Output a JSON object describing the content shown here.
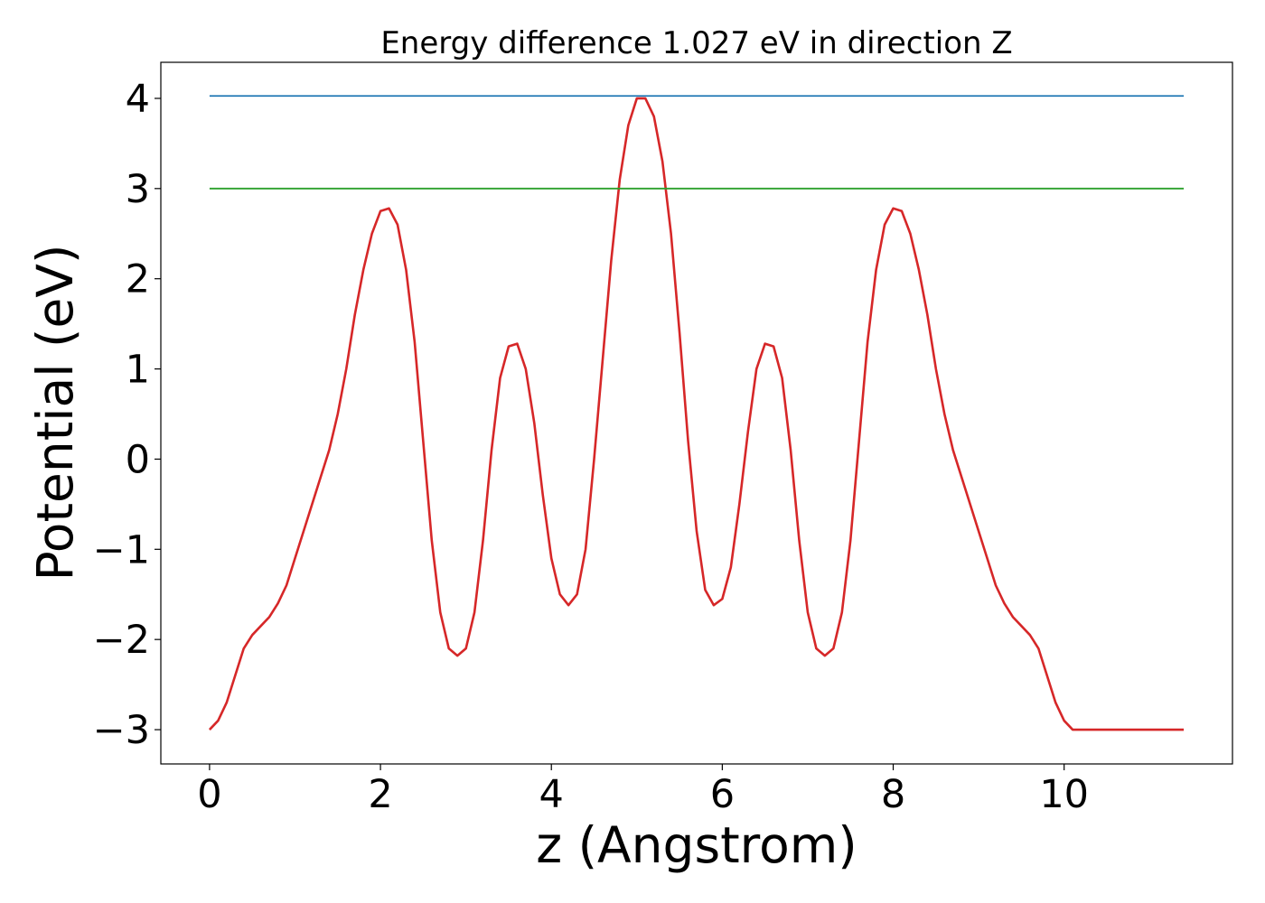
{
  "chart_data": {
    "type": "line",
    "title": "Energy difference 1.027 eV in direction Z",
    "xlabel": "z (Angstrom)",
    "ylabel": "Potential (eV)",
    "xlim": [
      -0.57,
      11.97
    ],
    "ylim": [
      -3.38,
      4.4
    ],
    "xticks": [
      0,
      2,
      4,
      6,
      8,
      10
    ],
    "xtick_labels": [
      "0",
      "2",
      "4",
      "6",
      "8",
      "10"
    ],
    "yticks": [
      -3,
      -2,
      -1,
      0,
      1,
      2,
      3,
      4
    ],
    "ytick_labels": [
      "−3",
      "−2",
      "−1",
      "0",
      "1",
      "2",
      "3",
      "4"
    ],
    "grid": false,
    "series": [
      {
        "color": "#d62728",
        "x": [
          0,
          0.1,
          0.2,
          0.3,
          0.4,
          0.5,
          0.6,
          0.7,
          0.8,
          0.9,
          1.0,
          1.1,
          1.2,
          1.3,
          1.4,
          1.5,
          1.6,
          1.7,
          1.8,
          1.9,
          2.0,
          2.1,
          2.2,
          2.3,
          2.4,
          2.5,
          2.6,
          2.7,
          2.8,
          2.9,
          3.0,
          3.1,
          3.2,
          3.3,
          3.4,
          3.5,
          3.6,
          3.7,
          3.8,
          3.9,
          4.0,
          4.1,
          4.2,
          4.3,
          4.4,
          4.5,
          4.6,
          4.7,
          4.8,
          4.9,
          5.0,
          5.1,
          5.2,
          5.3,
          5.4,
          5.5,
          5.6,
          5.7,
          5.8,
          5.9,
          6.0,
          6.1,
          6.2,
          6.3,
          6.4,
          6.5,
          6.6,
          6.7,
          6.8,
          6.9,
          7.0,
          7.1,
          7.2,
          7.3,
          7.4,
          7.5,
          7.6,
          7.7,
          7.8,
          7.9,
          8.0,
          8.1,
          8.2,
          8.3,
          8.4,
          8.5,
          8.6,
          8.7,
          8.8,
          8.9,
          9.0,
          9.1,
          9.2,
          9.3,
          9.4,
          9.5,
          9.6,
          9.7,
          9.8,
          9.9,
          10.0,
          10.1,
          10.2,
          10.3,
          10.4,
          10.5,
          10.6,
          10.7,
          10.8,
          10.9,
          11.0,
          11.1,
          11.2,
          11.3,
          11.4
        ],
        "values": [
          -3.0,
          -2.9,
          -2.7,
          -2.4,
          -2.1,
          -1.95,
          -1.85,
          -1.75,
          -1.6,
          -1.4,
          -1.1,
          -0.8,
          -0.5,
          -0.2,
          0.1,
          0.5,
          1.0,
          1.6,
          2.1,
          2.5,
          2.75,
          2.78,
          2.6,
          2.1,
          1.3,
          0.2,
          -0.9,
          -1.7,
          -2.1,
          -2.18,
          -2.1,
          -1.7,
          -0.9,
          0.1,
          0.9,
          1.25,
          1.28,
          1.0,
          0.4,
          -0.4,
          -1.1,
          -1.5,
          -1.62,
          -1.5,
          -1.0,
          0.0,
          1.1,
          2.2,
          3.1,
          3.7,
          4.0,
          4.0,
          3.8,
          3.3,
          2.5,
          1.4,
          0.2,
          -0.8,
          -1.45,
          -1.62,
          -1.55,
          -1.2,
          -0.5,
          0.3,
          1.0,
          1.28,
          1.25,
          0.9,
          0.1,
          -0.9,
          -1.7,
          -2.1,
          -2.18,
          -2.1,
          -1.7,
          -0.9,
          0.2,
          1.3,
          2.1,
          2.6,
          2.78,
          2.75,
          2.5,
          2.1,
          1.6,
          1.0,
          0.5,
          0.1,
          -0.2,
          -0.5,
          -0.8,
          -1.1,
          -1.4,
          -1.6,
          -1.75,
          -1.85,
          -1.95,
          -2.1,
          -2.4,
          -2.7,
          -2.9,
          -3.0,
          -3.0,
          -3.0,
          -3.0,
          -3.0,
          -3.0,
          -3.0,
          -3.0,
          -3.0,
          -3.0,
          -3.0,
          -3.0,
          -3.0,
          -3.0
        ]
      },
      {
        "color": "#1f77b4",
        "x": [
          0,
          11.4
        ],
        "values": [
          4.027,
          4.027
        ]
      },
      {
        "color": "#2ca02c",
        "x": [
          0,
          11.4
        ],
        "values": [
          3.0,
          3.0
        ]
      }
    ]
  }
}
